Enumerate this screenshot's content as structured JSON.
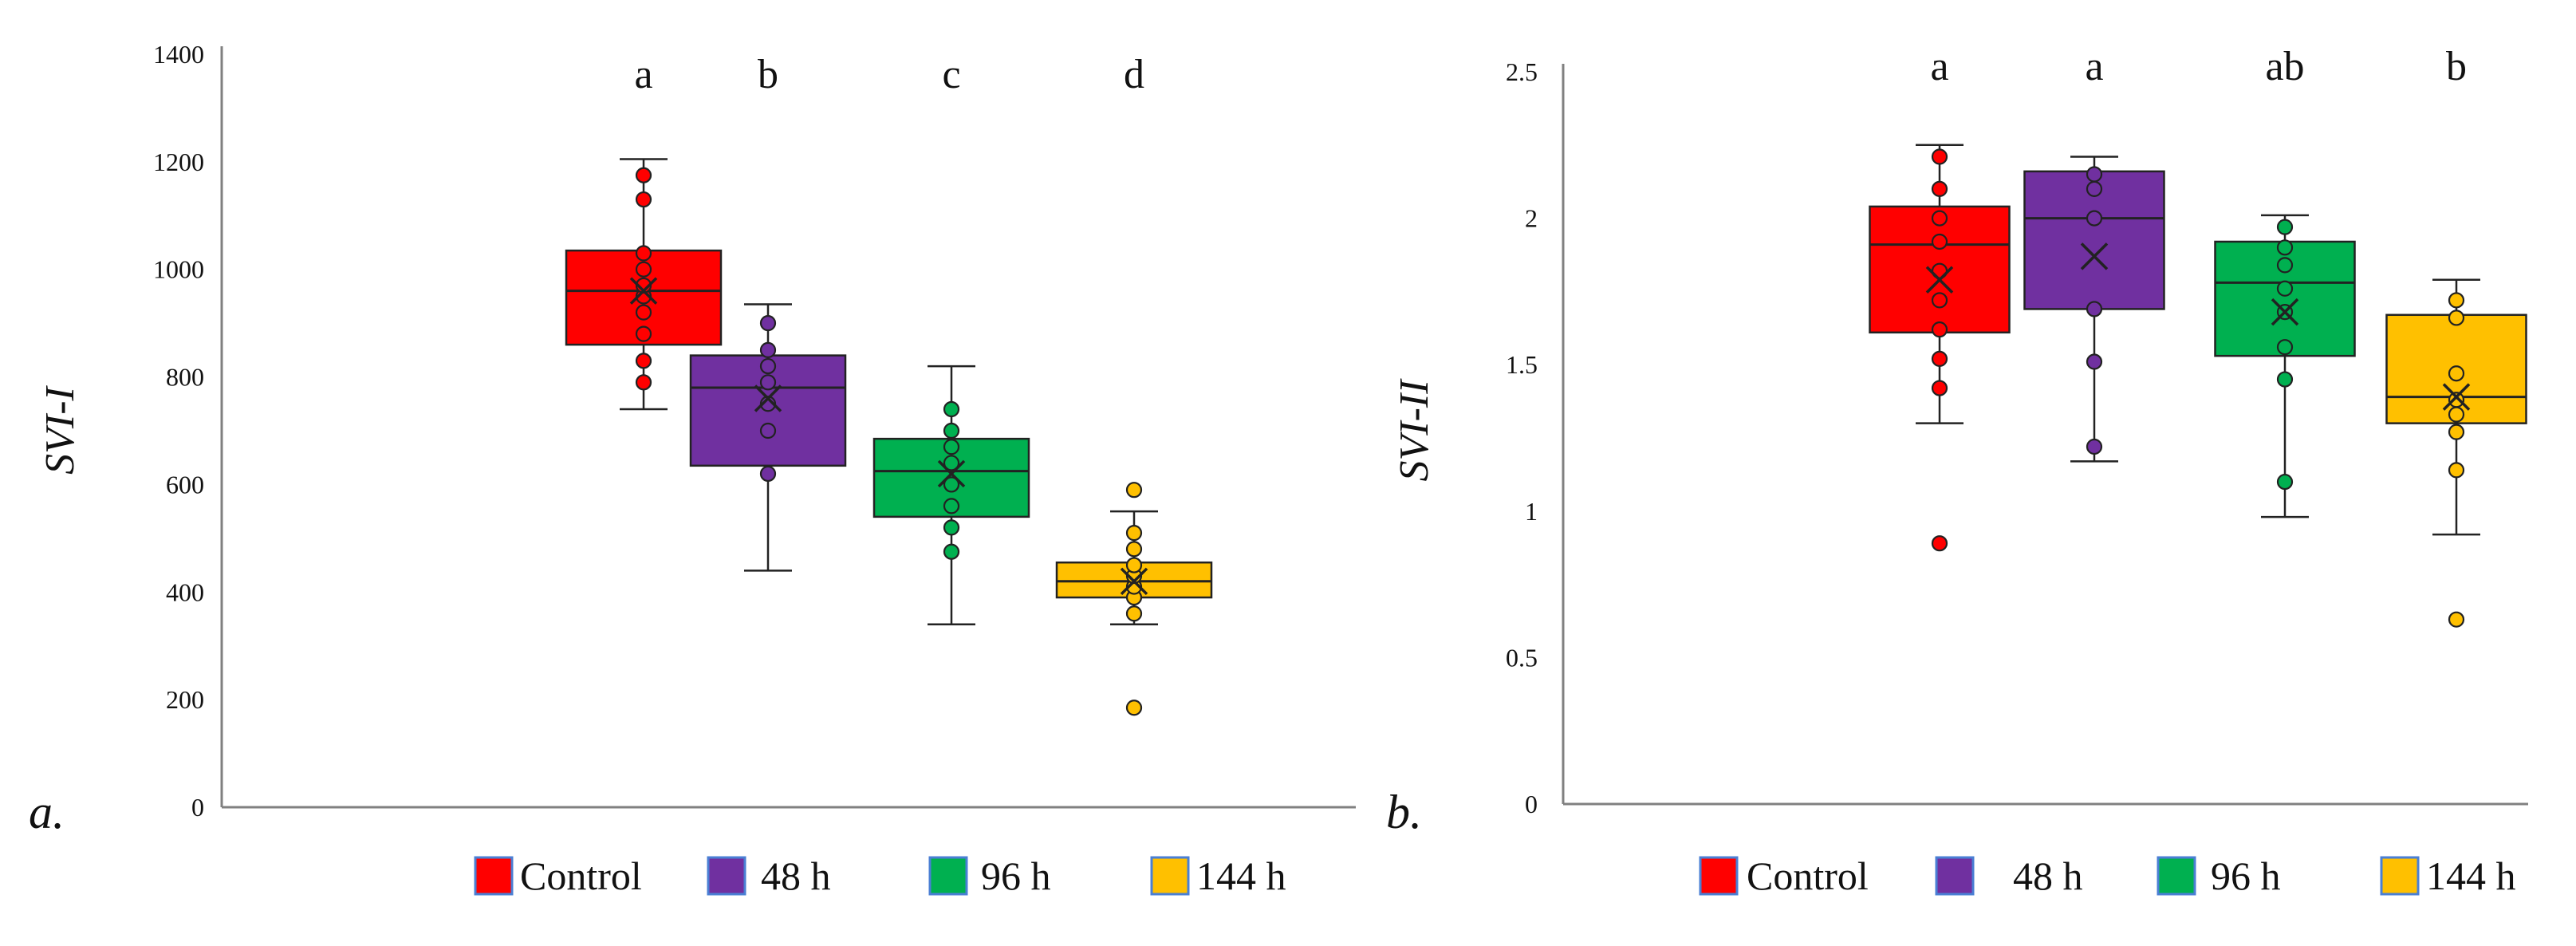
{
  "chart_data": [
    {
      "panel_label": "a.",
      "type": "box",
      "ylabel": "SVI-I",
      "ylim": [
        0,
        1400
      ],
      "yticks": [
        "0",
        "200",
        "400",
        "600",
        "800",
        "1000",
        "1200",
        "1400"
      ],
      "series": [
        {
          "name": "Control",
          "color": "#ff0000",
          "letter": "a",
          "min": 740,
          "q1": 860,
          "median": 960,
          "q3": 1035,
          "max": 1205,
          "mean": 960,
          "points": [
            790,
            830,
            880,
            920,
            950,
            970,
            1000,
            1030,
            1130,
            1175
          ]
        },
        {
          "name": "48 h",
          "color": "#7030a0",
          "letter": "b",
          "min": 440,
          "q1": 635,
          "median": 780,
          "q3": 840,
          "max": 935,
          "mean": 760,
          "points": [
            620,
            700,
            750,
            790,
            820,
            850,
            900
          ]
        },
        {
          "name": "96 h",
          "color": "#00b050",
          "letter": "c",
          "min": 340,
          "q1": 540,
          "median": 625,
          "q3": 685,
          "max": 820,
          "mean": 620,
          "points": [
            475,
            520,
            560,
            600,
            640,
            670,
            700,
            740
          ]
        },
        {
          "name": "144 h",
          "color": "#ffc000",
          "letter": "d",
          "min": 340,
          "q1": 390,
          "median": 420,
          "q3": 455,
          "max": 550,
          "mean": 420,
          "points": [
            185,
            360,
            390,
            410,
            430,
            450,
            480,
            510,
            590
          ]
        }
      ],
      "legend": [
        "Control",
        "48 h",
        "96 h",
        "144 h"
      ]
    },
    {
      "panel_label": "b.",
      "type": "box",
      "ylabel": "SVI-II",
      "ylim": [
        0,
        2.5
      ],
      "yticks": [
        "0",
        "0.5",
        "1",
        "1.5",
        "2",
        "2.5"
      ],
      "series": [
        {
          "name": "Control",
          "color": "#ff0000",
          "letter": "a",
          "min": 1.3,
          "q1": 1.61,
          "median": 1.91,
          "q3": 2.04,
          "max": 2.25,
          "mean": 1.79,
          "points": [
            0.89,
            1.42,
            1.52,
            1.62,
            1.72,
            1.82,
            1.92,
            2.0,
            2.1,
            2.21
          ]
        },
        {
          "name": "48 h",
          "color": "#7030a0",
          "letter": "a",
          "min": 1.17,
          "q1": 1.69,
          "median": 2.0,
          "q3": 2.16,
          "max": 2.21,
          "mean": 1.87,
          "points": [
            1.22,
            1.51,
            1.69,
            2.0,
            2.1,
            2.15
          ]
        },
        {
          "name": "96 h",
          "color": "#00b050",
          "letter": "ab",
          "min": 0.98,
          "q1": 1.53,
          "median": 1.78,
          "q3": 1.92,
          "max": 2.01,
          "mean": 1.68,
          "points": [
            1.1,
            1.45,
            1.56,
            1.68,
            1.76,
            1.84,
            1.9,
            1.97
          ]
        },
        {
          "name": "144 h",
          "color": "#ffc000",
          "letter": "b",
          "min": 0.92,
          "q1": 1.3,
          "median": 1.39,
          "q3": 1.67,
          "max": 1.79,
          "mean": 1.39,
          "points": [
            0.63,
            1.14,
            1.27,
            1.33,
            1.38,
            1.47,
            1.66,
            1.72
          ]
        }
      ],
      "legend": [
        "Control",
        "48 h",
        "96 h",
        "144 h"
      ]
    }
  ]
}
